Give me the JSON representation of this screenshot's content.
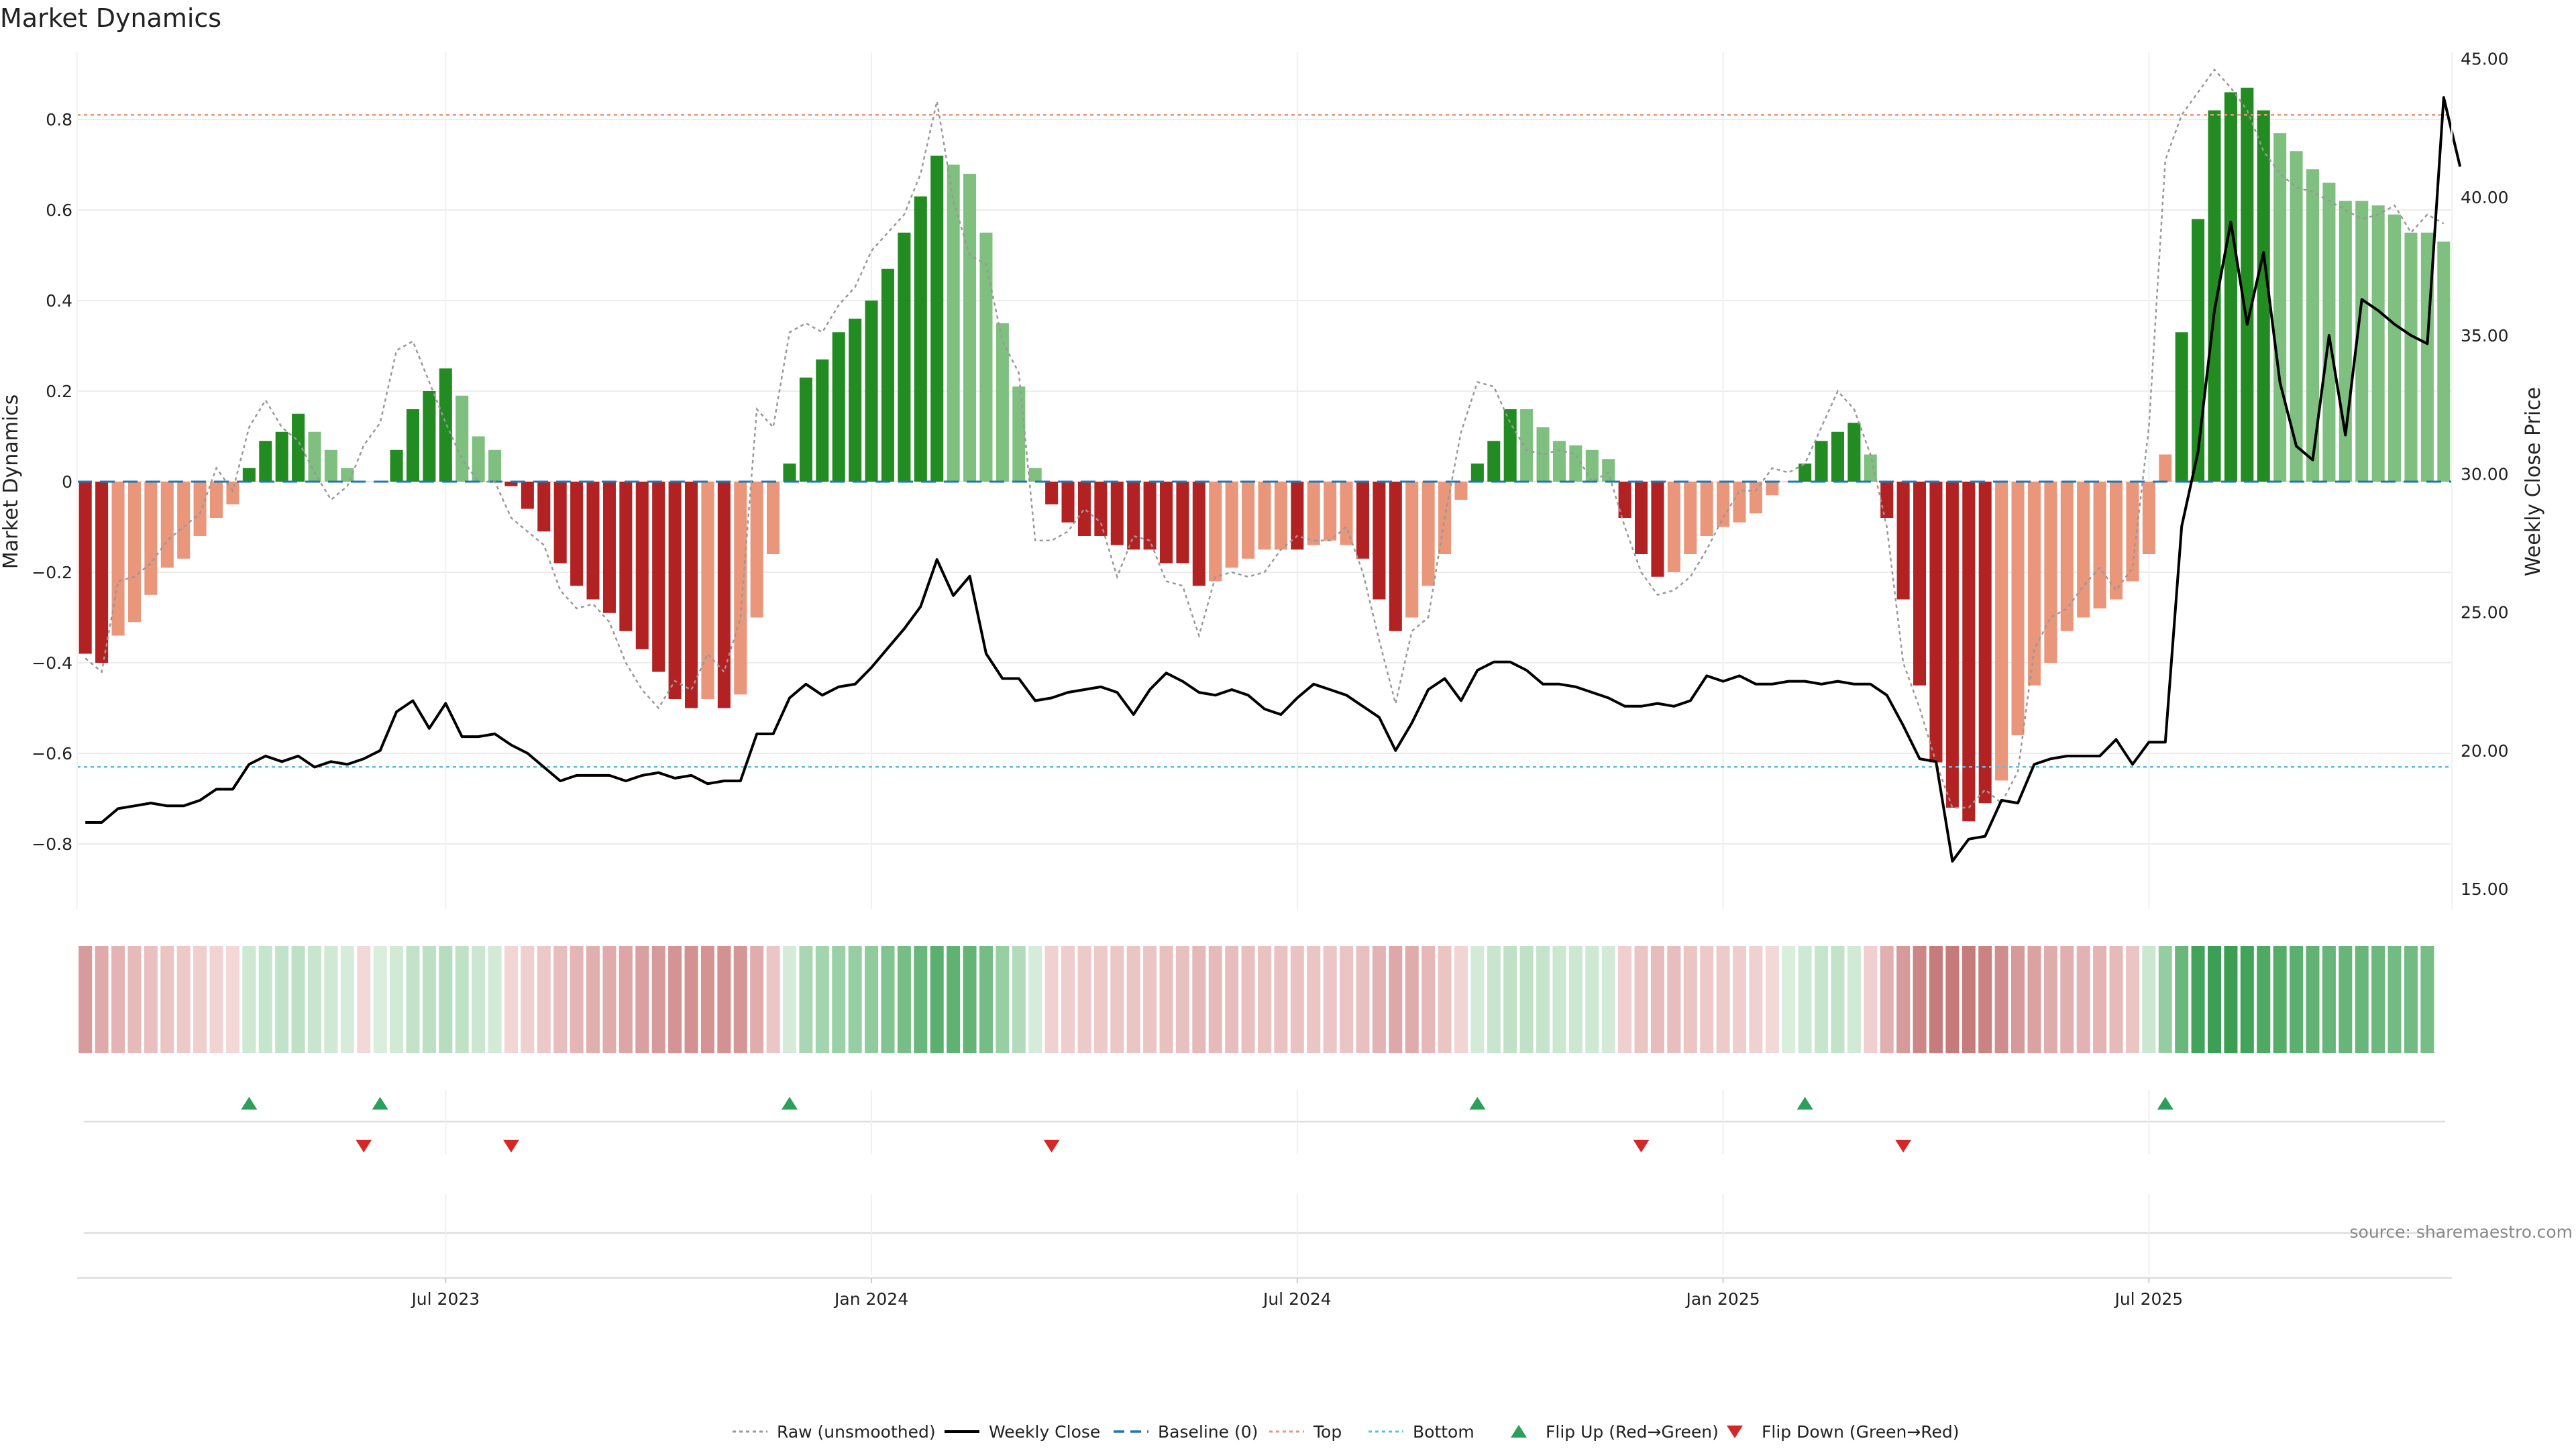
{
  "chart_data": {
    "type": "bar",
    "title": "Market Dynamics",
    "ylabel_left": "Market Dynamics",
    "ylabel_right": "Weekly Close Price",
    "source": "source: sharemaestro.com",
    "ylim_left": [
      -0.95,
      0.95
    ],
    "ylim_right": [
      15,
      45
    ],
    "yticks_left": [
      0.8,
      0.6,
      0.4,
      0.2,
      0,
      -0.2,
      -0.4,
      -0.6,
      -0.8
    ],
    "yticks_left_labels": [
      "0.8",
      "0.6",
      "0.4",
      "0.2",
      "0",
      "−0.2",
      "−0.4",
      "−0.6",
      "−0.8"
    ],
    "yticks_right": [
      45,
      40,
      35,
      30,
      25,
      20,
      15
    ],
    "yticks_right_labels": [
      "45.00",
      "40.00",
      "35.00",
      "30.00",
      "25.00",
      "20.00",
      "15.00"
    ],
    "x_ticks": [
      {
        "label": "Jul 2023",
        "week": 22.5
      },
      {
        "label": "Jan 2024",
        "week": 48.5
      },
      {
        "label": "Jul 2024",
        "week": 74.5
      },
      {
        "label": "Jan 2025",
        "week": 100.5
      },
      {
        "label": "Jul 2025",
        "week": 126.5
      }
    ],
    "top_line": 0.81,
    "bottom_line": -0.63,
    "baseline": 0,
    "colors": {
      "strong_green": "#228b22",
      "light_green": "#7fbf7f",
      "strong_red": "#b22222",
      "light_red": "#e9967a",
      "top_line": "#e9967a",
      "bottom_line": "#5bc0de",
      "baseline": "#1f77b4",
      "raw": "#999999",
      "close": "#000000",
      "flip_up": "#2ca05a",
      "flip_down": "#d62728"
    },
    "bars": [
      -0.38,
      -0.4,
      -0.34,
      -0.31,
      -0.25,
      -0.19,
      -0.17,
      -0.12,
      -0.08,
      -0.05,
      0.03,
      0.09,
      0.11,
      0.15,
      0.11,
      0.07,
      0.03,
      0.0,
      0.0,
      0.07,
      0.16,
      0.2,
      0.25,
      0.19,
      0.1,
      0.07,
      -0.01,
      -0.06,
      -0.11,
      -0.18,
      -0.23,
      -0.26,
      -0.29,
      -0.33,
      -0.37,
      -0.42,
      -0.48,
      -0.5,
      -0.48,
      -0.5,
      -0.47,
      -0.3,
      -0.16,
      0.04,
      0.23,
      0.27,
      0.33,
      0.36,
      0.4,
      0.47,
      0.55,
      0.63,
      0.72,
      0.7,
      0.68,
      0.55,
      0.35,
      0.21,
      0.03,
      -0.05,
      -0.09,
      -0.12,
      -0.12,
      -0.14,
      -0.15,
      -0.15,
      -0.18,
      -0.18,
      -0.23,
      -0.22,
      -0.19,
      -0.17,
      -0.15,
      -0.15,
      -0.15,
      -0.14,
      -0.13,
      -0.14,
      -0.17,
      -0.26,
      -0.33,
      -0.3,
      -0.23,
      -0.16,
      -0.04,
      0.04,
      0.09,
      0.16,
      0.16,
      0.12,
      0.09,
      0.08,
      0.07,
      0.05,
      -0.08,
      -0.16,
      -0.21,
      -0.2,
      -0.16,
      -0.12,
      -0.1,
      -0.09,
      -0.07,
      -0.03,
      0.0,
      0.04,
      0.09,
      0.11,
      0.13,
      0.06,
      -0.08,
      -0.26,
      -0.45,
      -0.62,
      -0.72,
      -0.75,
      -0.71,
      -0.66,
      -0.56,
      -0.45,
      -0.4,
      -0.33,
      -0.3,
      -0.28,
      -0.26,
      -0.22,
      -0.16,
      0.06,
      0.33,
      0.58,
      0.82,
      0.86,
      0.87,
      0.82,
      0.77,
      0.73,
      0.69,
      0.66,
      0.62,
      0.62,
      0.61,
      0.59,
      0.55,
      0.55,
      0.53
    ],
    "bar_colors": [
      "strong_red",
      "strong_red",
      "light_red",
      "light_red",
      "light_red",
      "light_red",
      "light_red",
      "light_red",
      "light_red",
      "light_red",
      "strong_green",
      "strong_green",
      "strong_green",
      "strong_green",
      "light_green",
      "light_green",
      "light_green",
      "light_green",
      "light_green",
      "strong_green",
      "strong_green",
      "strong_green",
      "strong_green",
      "light_green",
      "light_green",
      "light_green",
      "strong_red",
      "strong_red",
      "strong_red",
      "strong_red",
      "strong_red",
      "strong_red",
      "strong_red",
      "strong_red",
      "strong_red",
      "strong_red",
      "strong_red",
      "strong_red",
      "light_red",
      "strong_red",
      "light_red",
      "light_red",
      "light_red",
      "strong_green",
      "strong_green",
      "strong_green",
      "strong_green",
      "strong_green",
      "strong_green",
      "strong_green",
      "strong_green",
      "strong_green",
      "strong_green",
      "light_green",
      "light_green",
      "light_green",
      "light_green",
      "light_green",
      "light_green",
      "strong_red",
      "strong_red",
      "strong_red",
      "strong_red",
      "strong_red",
      "strong_red",
      "strong_red",
      "strong_red",
      "strong_red",
      "strong_red",
      "light_red",
      "light_red",
      "light_red",
      "light_red",
      "light_red",
      "strong_red",
      "light_red",
      "light_red",
      "light_red",
      "strong_red",
      "strong_red",
      "strong_red",
      "light_red",
      "light_red",
      "light_red",
      "light_red",
      "strong_green",
      "strong_green",
      "strong_green",
      "light_green",
      "light_green",
      "light_green",
      "light_green",
      "light_green",
      "light_green",
      "strong_red",
      "strong_red",
      "strong_red",
      "light_red",
      "light_red",
      "light_red",
      "light_red",
      "light_red",
      "light_red",
      "light_red",
      "light_red",
      "strong_green",
      "strong_green",
      "strong_green",
      "strong_green",
      "light_green",
      "strong_red",
      "strong_red",
      "strong_red",
      "strong_red",
      "strong_red",
      "strong_red",
      "strong_red",
      "light_red",
      "light_red",
      "light_red",
      "light_red",
      "light_red",
      "light_red",
      "light_red",
      "light_red",
      "light_red",
      "light_red",
      "light_red",
      "strong_green",
      "strong_green",
      "strong_green",
      "strong_green",
      "strong_green",
      "strong_green",
      "light_green",
      "light_green",
      "light_green",
      "light_green",
      "light_green",
      "light_green",
      "light_green",
      "light_green",
      "light_green",
      "light_green",
      "light_green"
    ],
    "raw": [
      -0.39,
      -0.42,
      -0.22,
      -0.21,
      -0.18,
      -0.13,
      -0.1,
      -0.07,
      0.03,
      -0.02,
      0.12,
      0.18,
      0.12,
      0.09,
      0.02,
      -0.04,
      -0.01,
      0.08,
      0.13,
      0.29,
      0.31,
      0.22,
      0.13,
      0.05,
      0.0,
      0.0,
      -0.08,
      -0.11,
      -0.14,
      -0.24,
      -0.28,
      -0.27,
      -0.31,
      -0.4,
      -0.46,
      -0.5,
      -0.44,
      -0.46,
      -0.38,
      -0.42,
      -0.3,
      0.16,
      0.12,
      0.33,
      0.35,
      0.33,
      0.39,
      0.43,
      0.51,
      0.55,
      0.59,
      0.68,
      0.84,
      0.62,
      0.5,
      0.48,
      0.31,
      0.24,
      -0.13,
      -0.13,
      -0.11,
      -0.06,
      -0.09,
      -0.21,
      -0.12,
      -0.13,
      -0.22,
      -0.23,
      -0.34,
      -0.21,
      -0.2,
      -0.21,
      -0.2,
      -0.15,
      -0.12,
      -0.13,
      -0.13,
      -0.1,
      -0.2,
      -0.35,
      -0.49,
      -0.33,
      -0.3,
      -0.08,
      0.11,
      0.22,
      0.21,
      0.13,
      0.07,
      0.06,
      0.07,
      0.06,
      0.0,
      0.02,
      -0.1,
      -0.2,
      -0.25,
      -0.24,
      -0.21,
      -0.15,
      -0.08,
      -0.02,
      -0.02,
      0.03,
      0.02,
      0.04,
      0.12,
      0.2,
      0.16,
      0.06,
      -0.1,
      -0.4,
      -0.5,
      -0.62,
      -0.72,
      -0.72,
      -0.68,
      -0.71,
      -0.64,
      -0.37,
      -0.3,
      -0.28,
      -0.23,
      -0.19,
      -0.24,
      -0.19,
      0.12,
      0.71,
      0.81,
      0.86,
      0.91,
      0.87,
      0.82,
      0.73,
      0.68,
      0.65,
      0.64,
      0.62,
      0.6,
      0.58,
      0.59,
      0.61,
      0.55,
      0.59,
      0.57
    ],
    "weekly_close": [
      17.4,
      17.4,
      17.9,
      18.0,
      18.1,
      18.0,
      18.0,
      18.2,
      18.6,
      18.6,
      19.5,
      19.8,
      19.6,
      19.8,
      19.4,
      19.6,
      19.5,
      19.7,
      20.0,
      21.4,
      21.8,
      20.8,
      21.7,
      20.5,
      20.5,
      20.6,
      20.2,
      19.9,
      19.4,
      18.9,
      19.1,
      19.1,
      19.1,
      18.9,
      19.1,
      19.2,
      19.0,
      19.1,
      18.8,
      18.9,
      18.9,
      20.6,
      20.6,
      21.9,
      22.4,
      22.0,
      22.3,
      22.4,
      23.0,
      23.7,
      24.4,
      25.2,
      26.9,
      25.6,
      26.3,
      23.5,
      22.6,
      22.6,
      21.8,
      21.9,
      22.1,
      22.2,
      22.3,
      22.1,
      21.3,
      22.2,
      22.8,
      22.5,
      22.1,
      22.0,
      22.2,
      22.0,
      21.5,
      21.3,
      21.9,
      22.4,
      22.2,
      22.0,
      21.6,
      21.2,
      20.0,
      21.0,
      22.2,
      22.6,
      21.8,
      22.9,
      23.2,
      23.2,
      22.9,
      22.4,
      22.4,
      22.3,
      22.1,
      21.9,
      21.6,
      21.6,
      21.7,
      21.6,
      21.8,
      22.7,
      22.5,
      22.7,
      22.4,
      22.4,
      22.5,
      22.5,
      22.4,
      22.5,
      22.4,
      22.4,
      22.0,
      20.9,
      19.7,
      19.6,
      16.0,
      16.8,
      16.9,
      18.2,
      18.1,
      19.5,
      19.7,
      19.8,
      19.8,
      19.8,
      20.4,
      19.5,
      20.3,
      20.3,
      28.1,
      30.8,
      35.9,
      39.1,
      35.4,
      38.0,
      33.3,
      31.0,
      30.5,
      35.0,
      31.4,
      36.3,
      35.9,
      35.4,
      35.0,
      34.7,
      43.6,
      41.1
    ],
    "regime_band": [
      "#d79b9b",
      "#dfaaaa",
      "#e4b4b4",
      "#e7baba",
      "#e9bfbf",
      "#ebc4c4",
      "#edc9c9",
      "#efcece",
      "#f1d3d3",
      "#f3d8d8",
      "#cde8d3",
      "#c6e5cd",
      "#c2e3ca",
      "#bde1c6",
      "#c8e6cf",
      "#cfe9d5",
      "#d6ecdb",
      "#f3d8d8",
      "#d9eedd",
      "#d1ead6",
      "#c2e3ca",
      "#bbe0c4",
      "#b5ddbe",
      "#bfe2c7",
      "#cbe7d1",
      "#d2ead7",
      "#f2d6d6",
      "#efd0d0",
      "#ecc8c8",
      "#e8bdbd",
      "#e5b5b5",
      "#e2afaf",
      "#e0abab",
      "#dda5a5",
      "#da9f9f",
      "#d79a9a",
      "#d49494",
      "#d39191",
      "#d49494",
      "#d39191",
      "#d59696",
      "#e1acac",
      "#ecc6c6",
      "#d4ebda",
      "#a9d7b3",
      "#a2d4ad",
      "#9ad0a6",
      "#95cea1",
      "#8fcb9c",
      "#82c491",
      "#76bd86",
      "#6ab77b",
      "#5cb06f",
      "#60b272",
      "#64b476",
      "#75bc85",
      "#97cfa2",
      "#b1dbbb",
      "#d6ecdb",
      "#f0d1d1",
      "#eecdcd",
      "#edc9c9",
      "#edc9c9",
      "#ecc7c7",
      "#ebc4c4",
      "#ebc4c4",
      "#e9c0c0",
      "#e9c0c0",
      "#e6b8b8",
      "#e7baba",
      "#e8bdbd",
      "#e9c0c0",
      "#eac2c2",
      "#eac2c2",
      "#eac2c2",
      "#ebc4c4",
      "#ecc6c6",
      "#ebc4c4",
      "#e9c0c0",
      "#e3b2b2",
      "#dea8a8",
      "#e0abab",
      "#e6b8b8",
      "#ebc4c4",
      "#f1d4d4",
      "#d2ead7",
      "#c8e6cf",
      "#bfe2c7",
      "#bfe2c7",
      "#c5e4cc",
      "#cae7d0",
      "#cce8d2",
      "#cde8d3",
      "#d2ead7",
      "#efcfcf",
      "#ebc4c4",
      "#e7bcbc",
      "#e8bdbd",
      "#ebc4c4",
      "#edc9c9",
      "#eecbcb",
      "#eecdcd",
      "#f0d1d1",
      "#f3d8d8",
      "#daeede",
      "#cde8d3",
      "#c6e5cd",
      "#c2e3ca",
      "#d1ead6",
      "#efcfcf",
      "#e2afaf",
      "#d79a9a",
      "#cc8686",
      "#c77c7c",
      "#c67a7a",
      "#c77c7c",
      "#ca8282",
      "#d08d8d",
      "#d79a9a",
      "#dba2a2",
      "#e0abab",
      "#e2afaf",
      "#e3b2b2",
      "#e4b4b4",
      "#e7baba",
      "#ebc4c4",
      "#cbe7d1",
      "#94cda0",
      "#6ab77b",
      "#44a35b",
      "#3d9f55",
      "#3b9e53",
      "#44a35b",
      "#4ea963",
      "#56ad69",
      "#5cb06f",
      "#61b273",
      "#67b578",
      "#67b578",
      "#69b67a",
      "#6cb87d",
      "#72bb83",
      "#72bb83",
      "#76bd86"
    ],
    "flip_up_weeks": [
      10,
      18,
      43,
      85,
      105,
      127
    ],
    "flip_down_weeks": [
      17,
      26,
      59,
      95,
      111
    ]
  },
  "legend": [
    {
      "label": "Raw (unsmoothed)",
      "icon": "dotted-grey-line"
    },
    {
      "label": "Weekly Close",
      "icon": "solid-black-line"
    },
    {
      "label": "Baseline (0)",
      "icon": "dashed-blue-line"
    },
    {
      "label": "Top",
      "icon": "dotted-orange-line"
    },
    {
      "label": "Bottom",
      "icon": "dotted-cyan-line"
    },
    {
      "label": "Flip Up (Red→Green)",
      "icon": "green-up-triangle"
    },
    {
      "label": "Flip Down (Green→Red)",
      "icon": "red-down-triangle"
    }
  ]
}
